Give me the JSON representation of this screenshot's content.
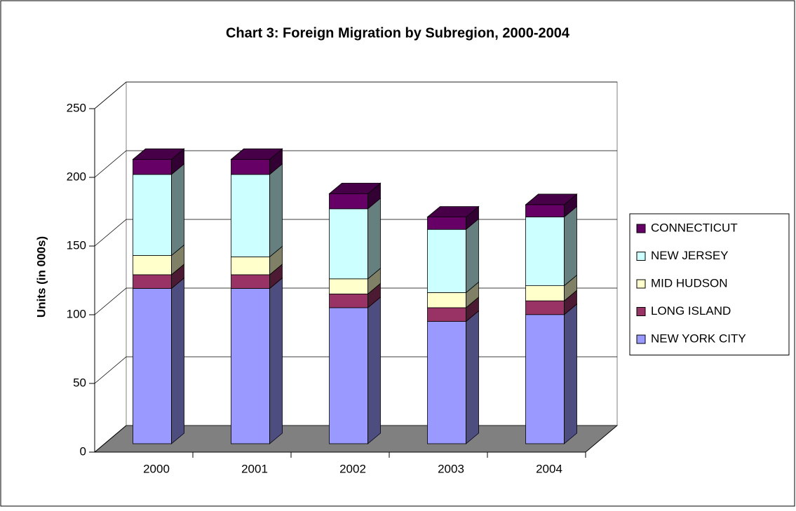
{
  "chart_data": {
    "type": "bar3d_stacked",
    "title": "Chart 3: Foreign Migration by Subregion, 2000-2004",
    "y_axis_label": "Units (in 000s)",
    "categories": [
      "2000",
      "2001",
      "2002",
      "2003",
      "2004"
    ],
    "series": [
      {
        "name": "NEW YORK CITY",
        "color": "#9999ff",
        "values": [
          113,
          113,
          99,
          89,
          94
        ]
      },
      {
        "name": "LONG ISLAND",
        "color": "#993366",
        "values": [
          10,
          10,
          10,
          10,
          10
        ]
      },
      {
        "name": "MID HUDSON",
        "color": "#ffffcc",
        "values": [
          14,
          13,
          11,
          11,
          11
        ]
      },
      {
        "name": "NEW JERSEY",
        "color": "#ccffff",
        "values": [
          59,
          60,
          51,
          46,
          50
        ]
      },
      {
        "name": "CONNECTICUT",
        "color": "#660066",
        "values": [
          11,
          11,
          11,
          9,
          9
        ]
      }
    ],
    "ylim": [
      0,
      250
    ],
    "yticks": [
      0,
      50,
      100,
      150,
      200,
      250
    ],
    "grid": true,
    "legend": "right"
  }
}
